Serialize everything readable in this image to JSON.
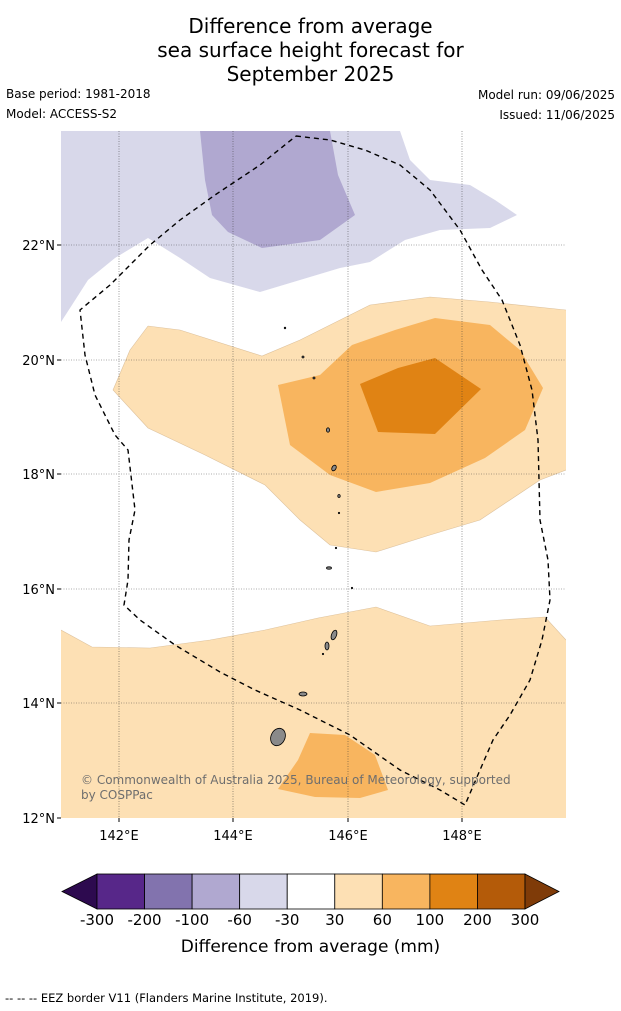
{
  "title": [
    "Difference from average",
    "sea surface height forecast for",
    "September 2025"
  ],
  "base_period": "Base period: 1981-2018",
  "model": "Model: ACCESS-S2",
  "model_run": "Model run: 09/06/2025",
  "issued": "Issued: 11/06/2025",
  "lat_labels": [
    "22°N",
    "20°N",
    "18°N",
    "16°N",
    "14°N",
    "12°N"
  ],
  "lon_labels": [
    "142°E",
    "144°E",
    "146°E",
    "148°E"
  ],
  "copyright": [
    "© Commonwealth of Australia 2025, Bureau of Meteorology, supported",
    "by COSPPac"
  ],
  "colorbar": {
    "ticks": [
      "-300",
      "-200",
      "-100",
      "-60",
      "-30",
      "30",
      "60",
      "100",
      "200",
      "300"
    ],
    "colors": [
      "#2d0a4f",
      "#572789",
      "#8273ae",
      "#b0a8d0",
      "#d8d8ea",
      "#ffffff",
      "#fde0b4",
      "#f8b55f",
      "#e08314",
      "#b45b09",
      "#7f3b08"
    ],
    "title": "Difference from average (mm)"
  },
  "footer": "--  --  -- EEZ border V11 (Flanders Marine Institute, 2019)."
}
